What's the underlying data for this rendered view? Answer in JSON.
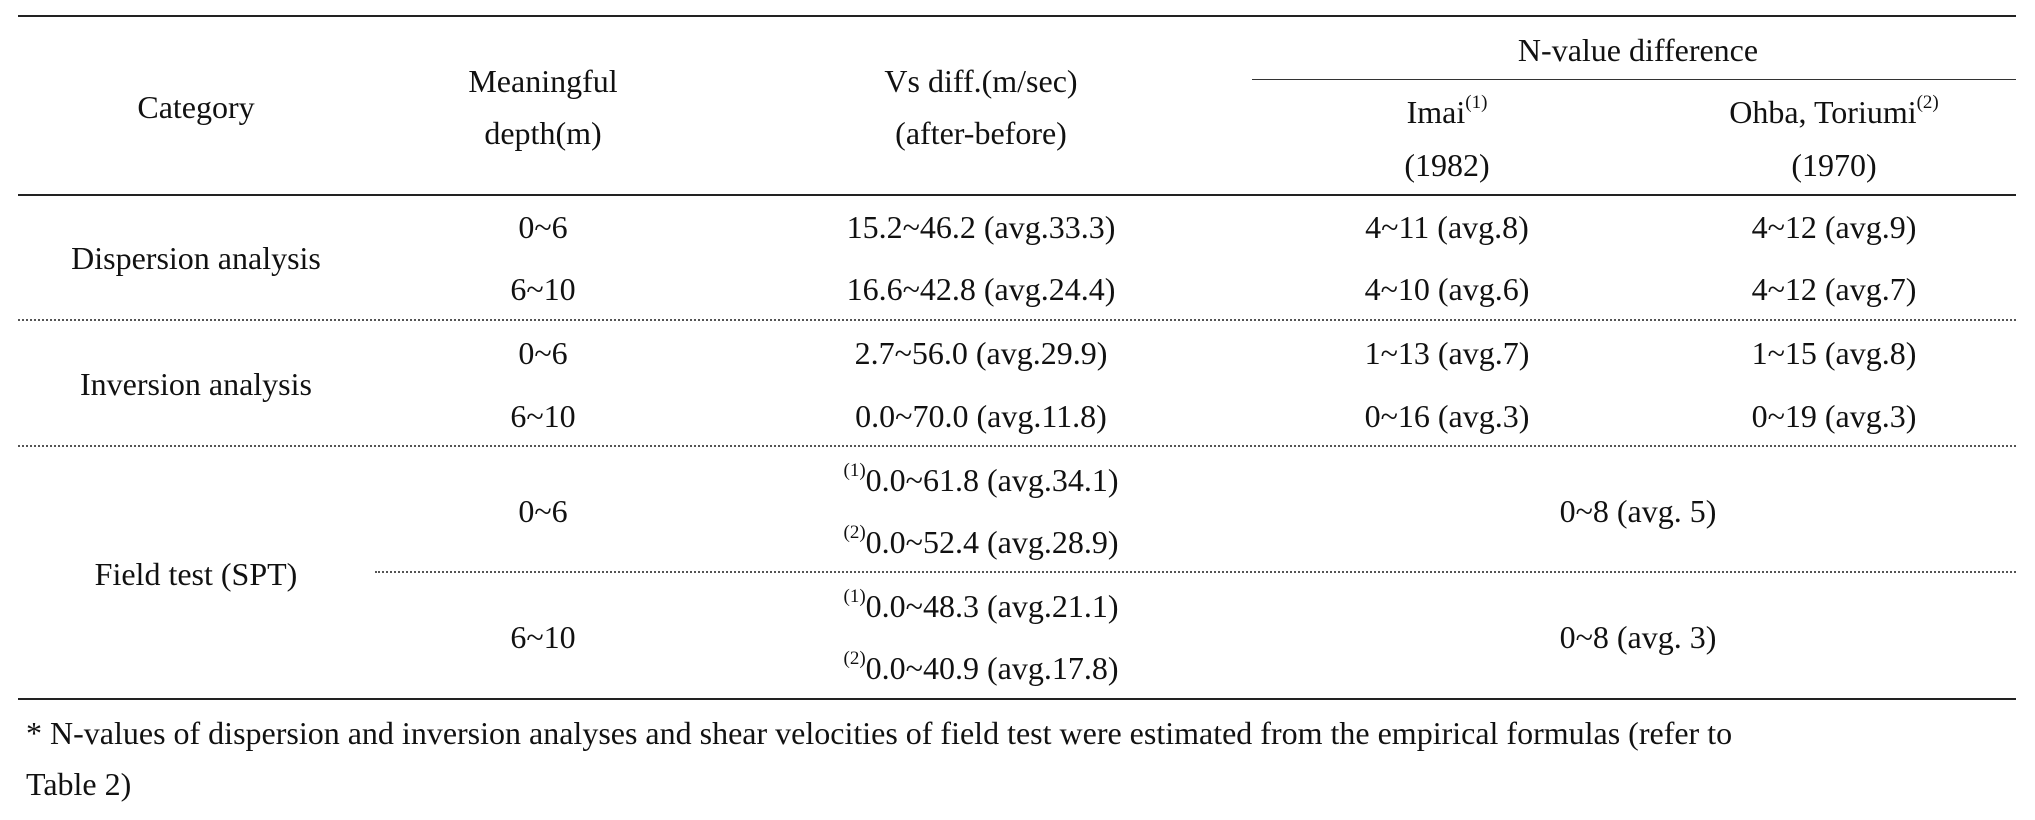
{
  "header": {
    "category": "Category",
    "depth_line1": "Meaningful",
    "depth_line2": "depth(m)",
    "vs_line1": "Vs diff.(m/sec)",
    "vs_line2": "(after-before)",
    "nvalue_group": "N-value difference",
    "imai_name": "Imai",
    "imai_ref": "(1)",
    "imai_year": "(1982)",
    "ohba_name": "Ohba, Toriumi",
    "ohba_ref": "(2)",
    "ohba_year": "(1970)"
  },
  "dispersion": {
    "category": "Dispersion analysis",
    "rows": [
      {
        "depth": "0~6",
        "vs": "15.2~46.2 (avg.33.3)",
        "imai": "4~11 (avg.8)",
        "ohba": "4~12 (avg.9)"
      },
      {
        "depth": "6~10",
        "vs": "16.6~42.8 (avg.24.4)",
        "imai": "4~10 (avg.6)",
        "ohba": "4~12 (avg.7)"
      }
    ]
  },
  "inversion": {
    "category": "Inversion analysis",
    "rows": [
      {
        "depth": "0~6",
        "vs": "2.7~56.0 (avg.29.9)",
        "imai": "1~13 (avg.7)",
        "ohba": "1~15 (avg.8)"
      },
      {
        "depth": "6~10",
        "vs": "0.0~70.0 (avg.11.8)",
        "imai": "0~16 (avg.3)",
        "ohba": "0~19 (avg.3)"
      }
    ]
  },
  "field": {
    "category": "Field test (SPT)",
    "rows": [
      {
        "depth": "0~6",
        "vs1_ref": "(1)",
        "vs1": "0.0~61.8 (avg.34.1)",
        "vs2_ref": "(2)",
        "vs2": "0.0~52.4 (avg.28.9)",
        "nvalue": "0~8 (avg. 5)"
      },
      {
        "depth": "6~10",
        "vs1_ref": "(1)",
        "vs1": "0.0~48.3 (avg.21.1)",
        "vs2_ref": "(2)",
        "vs2": "0.0~40.9 (avg.17.8)",
        "nvalue": "0~8 (avg. 3)"
      }
    ]
  },
  "footnote": {
    "line1": "* N-values of dispersion and inversion analyses and shear velocities of field test were estimated from the empirical formulas (refer to",
    "line2": "Table 2)"
  }
}
